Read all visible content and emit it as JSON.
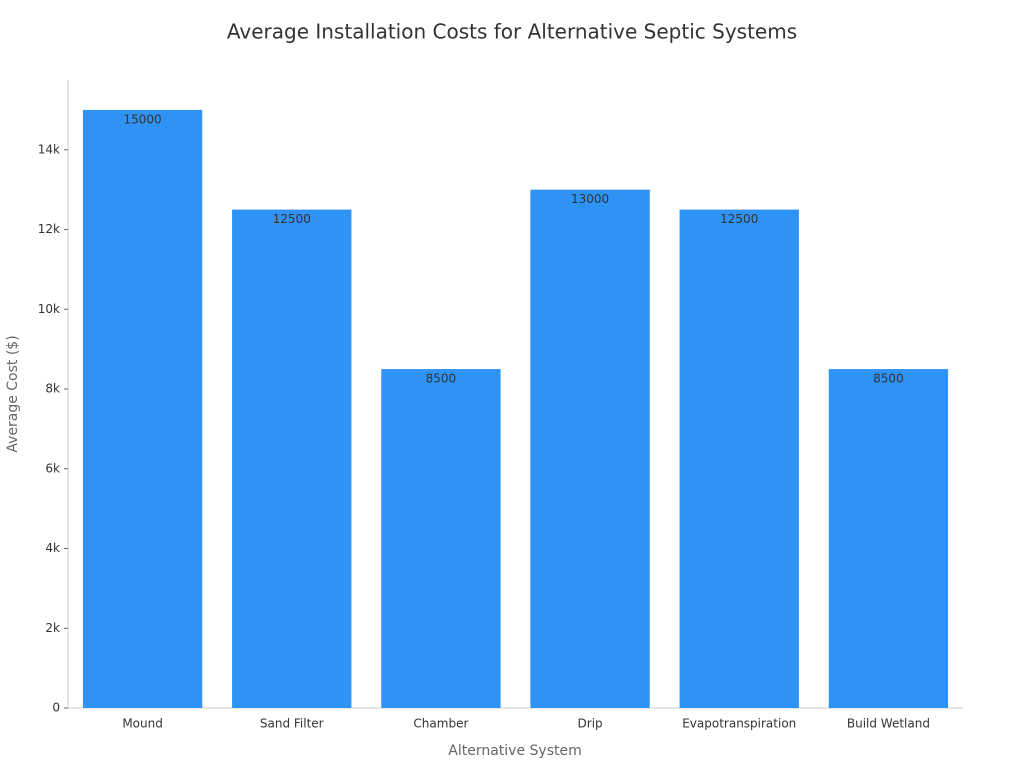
{
  "chart_data": {
    "type": "bar",
    "title": "Average Installation Costs for Alternative Septic Systems",
    "x_label": "Alternative System",
    "y_label": "Average Cost ($)",
    "categories": [
      "Mound",
      "Sand Filter",
      "Chamber",
      "Drip",
      "Evapotranspiration",
      "Build Wetland"
    ],
    "values": [
      15000,
      12500,
      8500,
      13000,
      12500,
      8500
    ],
    "color": "#2e93f5",
    "ylim": [
      0,
      15750
    ],
    "yticks": [
      0,
      {
        "value": 2000,
        "label": "2k"
      },
      {
        "value": 4000,
        "label": "4k"
      },
      {
        "value": 6000,
        "label": "6k"
      },
      {
        "value": 8000,
        "label": "8k"
      },
      {
        "value": 10000,
        "label": "10k"
      },
      {
        "value": 12000,
        "label": "12k"
      },
      {
        "value": 14000,
        "label": "14k"
      }
    ],
    "grid": false
  }
}
